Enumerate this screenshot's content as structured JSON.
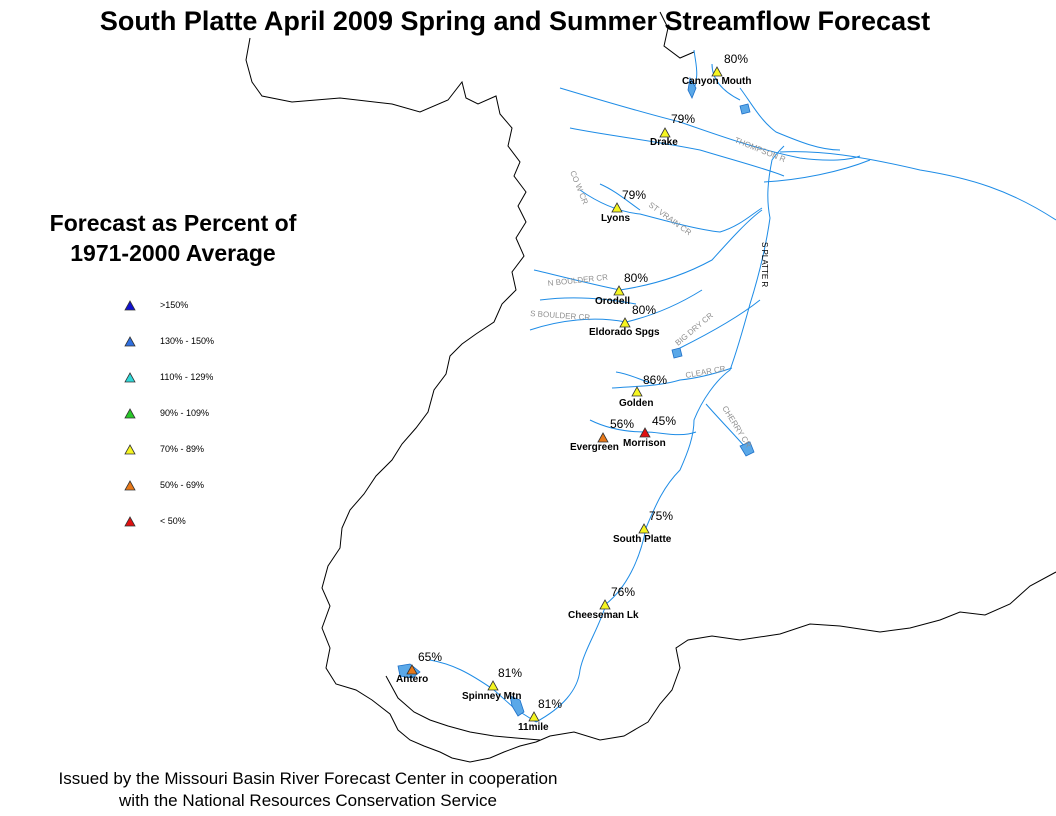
{
  "title": "South Platte April 2009 Spring and Summer Streamflow Forecast",
  "legend": {
    "title_line1": "Forecast as Percent of",
    "title_line2": "1971-2000 Average",
    "items": [
      {
        "label": ">150%",
        "color": "#1010d0"
      },
      {
        "label": "130% - 150%",
        "color": "#2f6fe0"
      },
      {
        "label": "110% - 129%",
        "color": "#30d8d8"
      },
      {
        "label": "90% - 109%",
        "color": "#28c828"
      },
      {
        "label": "70% - 89%",
        "color": "#f5f520"
      },
      {
        "label": "50% - 69%",
        "color": "#e87818"
      },
      {
        "label": "< 50%",
        "color": "#e01010"
      }
    ]
  },
  "stations": [
    {
      "name": "Canyon Mouth",
      "percent": "80%",
      "color": "#f5f520"
    },
    {
      "name": "Drake",
      "percent": "79%",
      "color": "#f5f520"
    },
    {
      "name": "Lyons",
      "percent": "79%",
      "color": "#f5f520"
    },
    {
      "name": "Orodell",
      "percent": "80%",
      "color": "#f5f520"
    },
    {
      "name": "Eldorado Spgs",
      "percent": "80%",
      "color": "#f5f520"
    },
    {
      "name": "Golden",
      "percent": "86%",
      "color": "#f5f520"
    },
    {
      "name": "Evergreen",
      "percent": "56%",
      "color": "#e87818"
    },
    {
      "name": "Morrison",
      "percent": "45%",
      "color": "#e01010"
    },
    {
      "name": "South Platte",
      "percent": "75%",
      "color": "#f5f520"
    },
    {
      "name": "Cheeseman Lk",
      "percent": "76%",
      "color": "#f5f520"
    },
    {
      "name": "Antero",
      "percent": "65%",
      "color": "#e87818"
    },
    {
      "name": "Spinney Mtn",
      "percent": "81%",
      "color": "#f5f520"
    },
    {
      "name": "11mile",
      "percent": "81%",
      "color": "#f5f520"
    }
  ],
  "rivers": [
    {
      "label": "THOMPSON R"
    },
    {
      "label": "CO W CR"
    },
    {
      "label": "ST VRAIN CR"
    },
    {
      "label": "N BOULDER CR"
    },
    {
      "label": "S BOULDER CR"
    },
    {
      "label": "S PLATTE R"
    },
    {
      "label": "BIG DRY CR"
    },
    {
      "label": "CLEAR CR"
    },
    {
      "label": "CHERRY CR"
    }
  ],
  "footer": {
    "line1": "Issued by the Missouri Basin River Forecast Center in cooperation",
    "line2": "with the National Resources Conservation Service"
  }
}
